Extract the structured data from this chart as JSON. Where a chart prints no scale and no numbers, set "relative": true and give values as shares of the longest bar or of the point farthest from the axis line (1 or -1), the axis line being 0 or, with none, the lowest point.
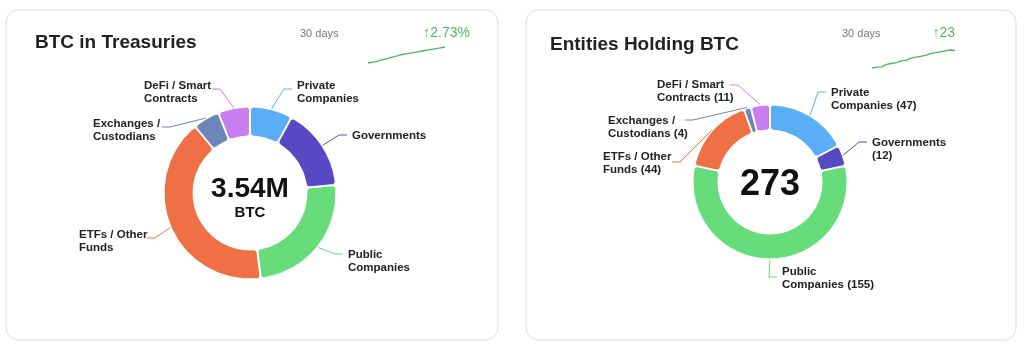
{
  "chart_data": [
    {
      "type": "donut",
      "title": "BTC in Treasuries",
      "categories": [
        "Private Companies",
        "Governments",
        "Public Companies",
        "ETFs / Other Funds",
        "Exchanges / Custodians",
        "DeFi / Smart Contracts"
      ],
      "values": [
        8,
        15.5,
        24.5,
        41,
        5,
        6
      ],
      "colors": [
        "#5aaef5",
        "#5748c4",
        "#66dd7a",
        "#ee7044",
        "#6b86b8",
        "#c77ef0"
      ],
      "annotations": [
        "3.54M",
        "BTC"
      ]
    },
    {
      "type": "line",
      "title": "30 days",
      "categories": [
        null,
        null,
        null,
        null,
        null,
        null,
        null,
        null,
        null,
        null,
        null,
        null,
        null,
        null,
        null,
        null,
        null,
        null
      ],
      "relative": true,
      "values": [
        0,
        0.05,
        0.1,
        0.2,
        0.25,
        0.35,
        0.4,
        0.5,
        0.55,
        0.6,
        0.65,
        0.7,
        0.75,
        0.8,
        0.85,
        0.9,
        0.95,
        1
      ],
      "color": "#4cb85c",
      "annotations": [
        "↑2.73%"
      ]
    },
    {
      "type": "donut",
      "title": "Entities Holding BTC",
      "categories": [
        "Private Companies",
        "Governments",
        "Public Companies",
        "ETFs / Other Funds",
        "Exchanges / Custodians",
        "DeFi / Smart Contracts"
      ],
      "values": [
        47,
        12,
        155,
        44,
        4,
        11
      ],
      "value_labels": [
        "(47)",
        "(12)",
        "(155)",
        "(44)",
        "(4)",
        "(11)"
      ],
      "colors": [
        "#5aaef5",
        "#5748c4",
        "#66dd7a",
        "#ee7044",
        "#6b86b8",
        "#c77ef0"
      ],
      "annotations": [
        "273"
      ]
    },
    {
      "type": "line",
      "title": "30 days",
      "categories": [
        null,
        null,
        null,
        null,
        null,
        null,
        null,
        null,
        null,
        null,
        null,
        null,
        null,
        null,
        null,
        null,
        null,
        null
      ],
      "relative": true,
      "values": [
        0,
        0.05,
        0.06,
        0.2,
        0.25,
        0.3,
        0.4,
        0.42,
        0.55,
        0.6,
        0.65,
        0.7,
        0.8,
        0.85,
        0.9,
        0.95,
        1,
        0.98
      ],
      "color": "#4cb85c",
      "annotations": [
        "↑23"
      ]
    }
  ]
}
